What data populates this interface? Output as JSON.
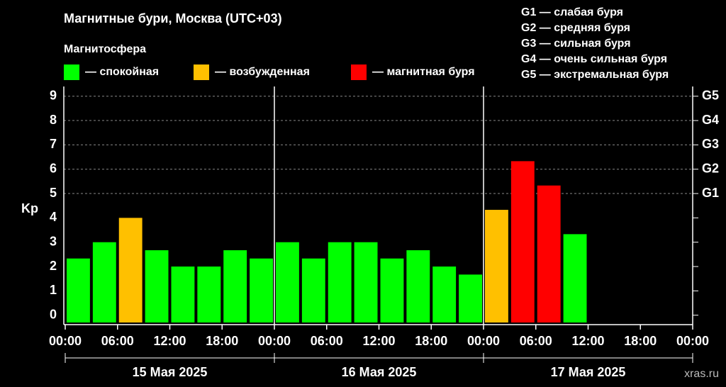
{
  "chart_data": {
    "type": "bar",
    "title": "Магнитные бури, Москва (UTC+03)",
    "legend_title": "Магнитосфера",
    "legend": [
      {
        "label": "— спокойная",
        "color": "#00ff00"
      },
      {
        "label": "— возбужденная",
        "color": "#ffc000"
      },
      {
        "label": "— магнитная буря",
        "color": "#ff0000"
      }
    ],
    "scale_legend": [
      "G1 — слабая буря",
      "G2 — средняя буря",
      "G3 — сильная буря",
      "G4 — очень сильная буря",
      "G5 — экстремальная буря"
    ],
    "y_label": "Kp",
    "watermark": "xras.ru",
    "x": [
      0,
      3,
      6,
      9,
      12,
      15,
      18,
      21,
      24,
      27,
      30,
      33,
      36,
      39,
      42,
      45,
      48,
      51,
      54,
      57,
      60,
      63,
      66,
      69
    ],
    "bar_width": 3,
    "series": [
      {
        "values": [
          2.33,
          3,
          4,
          2.67,
          2,
          2,
          2.67,
          2.33,
          3,
          2.33,
          3,
          3,
          2.33,
          2.67,
          2,
          1.67,
          4.33,
          6.33,
          5.33,
          3.33,
          null,
          null,
          null,
          null
        ],
        "colors": [
          "#00ff00",
          "#00ff00",
          "#ffc000",
          "#00ff00",
          "#00ff00",
          "#00ff00",
          "#00ff00",
          "#00ff00",
          "#00ff00",
          "#00ff00",
          "#00ff00",
          "#00ff00",
          "#00ff00",
          "#00ff00",
          "#00ff00",
          "#00ff00",
          "#ffc000",
          "#ff0000",
          "#ff0000",
          "#00ff00",
          null,
          null,
          null,
          null
        ]
      }
    ],
    "xlim": [
      0,
      72
    ],
    "xticks": [
      {
        "value": 0,
        "label": "00:00"
      },
      {
        "value": 6,
        "label": "06:00"
      },
      {
        "value": 12,
        "label": "12:00"
      },
      {
        "value": 18,
        "label": "18:00"
      },
      {
        "value": 24,
        "label": "00:00"
      },
      {
        "value": 30,
        "label": "06:00"
      },
      {
        "value": 36,
        "label": "12:00"
      },
      {
        "value": 42,
        "label": "18:00"
      },
      {
        "value": 48,
        "label": "00:00"
      },
      {
        "value": 54,
        "label": "06:00"
      },
      {
        "value": 60,
        "label": "12:00"
      },
      {
        "value": 66,
        "label": "18:00"
      },
      {
        "value": 72,
        "label": "00:00"
      }
    ],
    "days": [
      {
        "label": "15 Мая 2025",
        "start": 0,
        "end": 24
      },
      {
        "label": "16 Мая 2025",
        "start": 24,
        "end": 48
      },
      {
        "label": "17 Мая 2025",
        "start": 48,
        "end": 72
      }
    ],
    "ylim": [
      -0.3,
      9.4
    ],
    "yticks": [
      0,
      1,
      2,
      3,
      4,
      5,
      6,
      7,
      8,
      9
    ],
    "y2lim": [
      -0.3,
      9.4
    ],
    "y2ticks": [
      {
        "value": 5,
        "label": "G1"
      },
      {
        "value": 6,
        "label": "G2"
      },
      {
        "value": 7,
        "label": "G3"
      },
      {
        "value": 8,
        "label": "G4"
      },
      {
        "value": 9,
        "label": "G5"
      }
    ],
    "grid": "y2"
  }
}
